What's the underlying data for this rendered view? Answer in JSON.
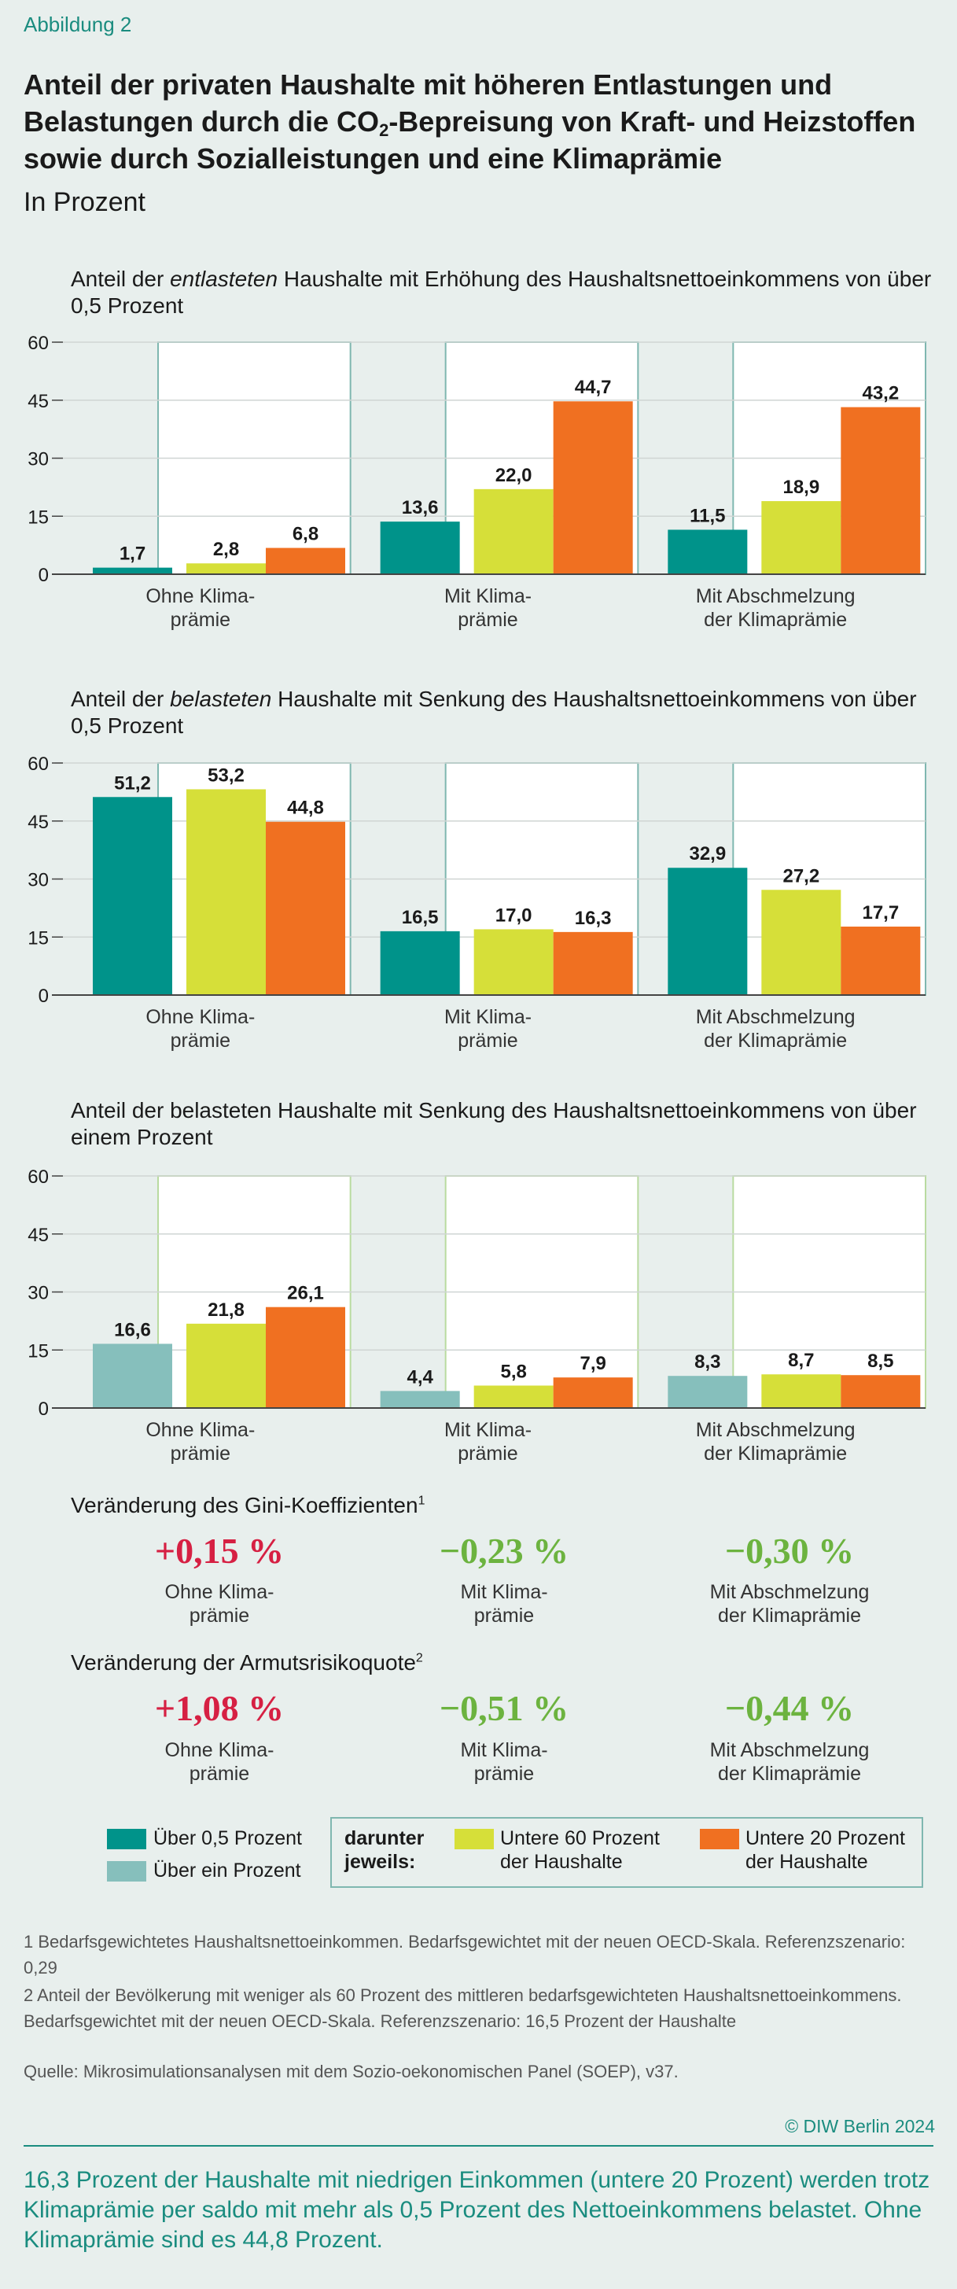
{
  "figure_label": "Abbildung 2",
  "title_parts": [
    "Anteil der privaten Haushalte mit höheren Entlastungen und Belastungen durch die CO",
    "2",
    "-Bepreisung von Kraft- und Heizstoffen sowie durch Sozialleistungen und eine Klimaprämie"
  ],
  "subtitle": "In Prozent",
  "colors": {
    "teal": "#00938a",
    "light_teal": "#86bfbc",
    "yellow": "#d6df39",
    "orange": "#f07021",
    "grid": "#cfd5d3",
    "panel_border_teal": "#7fb7b0",
    "panel_border_green": "#b9dba0"
  },
  "panels": [
    {
      "title_html": "Anteil der <i>entlasteten</i> Haushalte mit Erhöhung des Haushaltsnettoeinkommens von über 0,5 Prozent",
      "title_parts": [
        "Anteil der ",
        "entlasteten",
        " Haushalte mit Erhöhung des Haushaltsnettoeinkommens von über 0,5 Prozent"
      ],
      "border": "teal"
    },
    {
      "title_parts": [
        "Anteil der ",
        "belasteten",
        " Haushalte mit Senkung des Haushaltsnettoeinkommens von über 0,5 Prozent"
      ],
      "border": "teal"
    },
    {
      "title_parts": [
        "Anteil der belasteten Haushalte mit Senkung des Haushaltsnettoeinkommens von über einem Prozent",
        "",
        ""
      ],
      "border": "green"
    }
  ],
  "chart_data": [
    {
      "type": "bar",
      "categories": [
        [
          "Ohne Klima-",
          "prämie"
        ],
        [
          "Mit Klima-",
          "prämie"
        ],
        [
          "Mit Abschmelzung",
          "der Klimaprämie"
        ]
      ],
      "yticks": [
        0,
        15,
        30,
        45,
        60
      ],
      "ylim": [
        0,
        60
      ],
      "series": [
        {
          "name": "Über 0,5 Prozent",
          "color": "#00938a",
          "values": [
            1.7,
            13.6,
            11.5
          ],
          "labels": [
            "1,7",
            "13,6",
            "11,5"
          ]
        },
        {
          "name": "Untere 60 Prozent der Haushalte",
          "color": "#d6df39",
          "values": [
            2.8,
            22.0,
            18.9
          ],
          "labels": [
            "2,8",
            "22,0",
            "18,9"
          ]
        },
        {
          "name": "Untere 20 Prozent der Haushalte",
          "color": "#f07021",
          "values": [
            6.8,
            44.7,
            43.2
          ],
          "labels": [
            "6,8",
            "44,7",
            "43,2"
          ]
        }
      ]
    },
    {
      "type": "bar",
      "categories": [
        [
          "Ohne Klima-",
          "prämie"
        ],
        [
          "Mit Klima-",
          "prämie"
        ],
        [
          "Mit Abschmelzung",
          "der Klimaprämie"
        ]
      ],
      "yticks": [
        0,
        15,
        30,
        45,
        60
      ],
      "ylim": [
        0,
        60
      ],
      "series": [
        {
          "name": "Über 0,5 Prozent",
          "color": "#00938a",
          "values": [
            51.2,
            16.5,
            32.9
          ],
          "labels": [
            "51,2",
            "16,5",
            "32,9"
          ]
        },
        {
          "name": "Untere 60 Prozent der Haushalte",
          "color": "#d6df39",
          "values": [
            53.2,
            17.0,
            27.2
          ],
          "labels": [
            "53,2",
            "17,0",
            "27,2"
          ]
        },
        {
          "name": "Untere 20 Prozent der Haushalte",
          "color": "#f07021",
          "values": [
            44.8,
            16.3,
            17.7
          ],
          "labels": [
            "44,8",
            "16,3",
            "17,7"
          ]
        }
      ]
    },
    {
      "type": "bar",
      "categories": [
        [
          "Ohne Klima-",
          "prämie"
        ],
        [
          "Mit Klima-",
          "prämie"
        ],
        [
          "Mit Abschmelzung",
          "der Klimaprämie"
        ]
      ],
      "yticks": [
        0,
        15,
        30,
        45,
        60
      ],
      "ylim": [
        0,
        60
      ],
      "series": [
        {
          "name": "Über ein Prozent",
          "color": "#86bfbc",
          "values": [
            16.6,
            4.4,
            8.3
          ],
          "labels": [
            "16,6",
            "4,4",
            "8,3"
          ]
        },
        {
          "name": "Untere 60 Prozent der Haushalte",
          "color": "#d6df39",
          "values": [
            21.8,
            5.8,
            8.7
          ],
          "labels": [
            "21,8",
            "5,8",
            "8,7"
          ]
        },
        {
          "name": "Untere 20 Prozent der Haushalte",
          "color": "#f07021",
          "values": [
            26.1,
            7.9,
            8.5
          ],
          "labels": [
            "26,1",
            "7,9",
            "8,5"
          ]
        }
      ]
    }
  ],
  "gini": {
    "title": "Veränderung des Gini-Koeffizienten",
    "sup": "1",
    "values": [
      "+0,15 %",
      "−0,23 %",
      "−0,30 %"
    ],
    "labels": [
      [
        "Ohne Klima-",
        "prämie"
      ],
      [
        "Mit Klima-",
        "prämie"
      ],
      [
        "Mit Abschmelzung",
        "der Klimaprämie"
      ]
    ]
  },
  "poverty": {
    "title": "Veränderung der Armutsrisikoquote",
    "sup": "2",
    "values": [
      "+1,08 %",
      "−0,51 %",
      "−0,44 %"
    ],
    "labels": [
      [
        "Ohne Klima-",
        "prämie"
      ],
      [
        "Mit Klima-",
        "prämie"
      ],
      [
        "Mit Abschmelzung",
        "der Klimaprämie"
      ]
    ]
  },
  "legend": {
    "over_half": "Über 0,5 Prozent",
    "over_one": "Über ein Prozent",
    "darunter": [
      "darunter",
      "jeweils:"
    ],
    "lower60": [
      "Untere 60 Prozent",
      "der Haushalte"
    ],
    "lower20": [
      "Untere 20 Prozent",
      "der Haushalte"
    ]
  },
  "footnotes": {
    "fn1": "1   Bedarfsgewichtetes Haushaltsnettoeinkommen. Bedarfsgewichtet mit der neuen OECD-Skala. Referenzszenario: 0,29",
    "fn2": "2   Anteil der Bevölkerung mit weniger als 60 Prozent des mittleren bedarfsgewichteten Haushaltsnettoeinkommens. Bedarfsgewichtet mit der neuen OECD-Skala. Referenzszenario: 16,5 Prozent der Haushalte",
    "source": "Quelle: Mikrosimulationsanalysen mit dem Sozio-oekonomischen Panel (SOEP), v37."
  },
  "credit": "© DIW Berlin 2024",
  "summary": "16,3 Prozent der Haushalte mit niedrigen Einkommen (untere 20 Prozent) werden trotz Klimaprämie per saldo mit mehr als 0,5 Prozent des Nettoeinkommens belastet. Ohne Klimaprämie sind es 44,8 Prozent."
}
